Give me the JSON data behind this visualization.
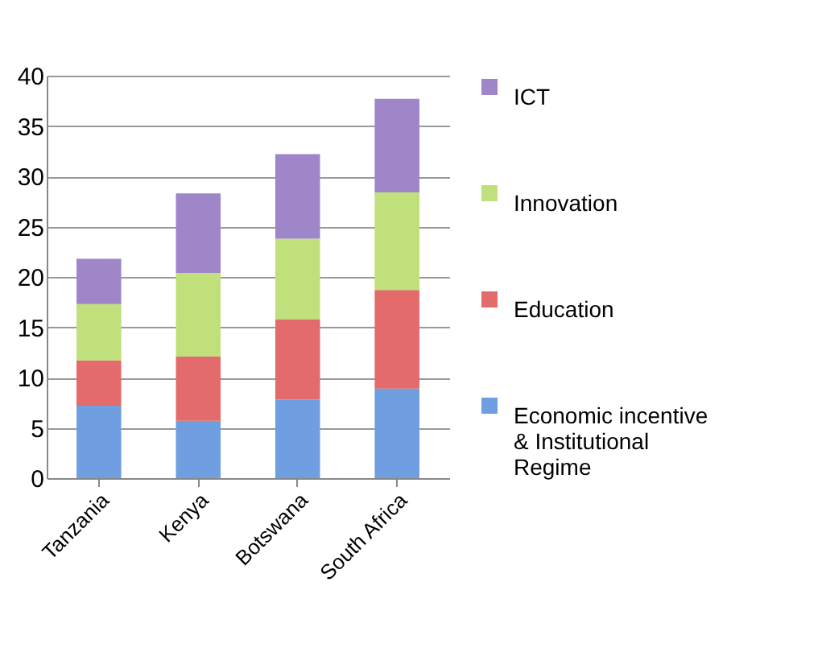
{
  "chart_data": {
    "type": "bar",
    "stacked": true,
    "categories": [
      "Tanzania",
      "Kenya",
      "Botswana",
      "South Africa"
    ],
    "series": [
      {
        "name": "Economic incentive & Institutional Regime",
        "color": "#6f9fe0",
        "values": [
          7.2,
          5.7,
          7.8,
          8.9
        ]
      },
      {
        "name": "Education",
        "color": "#e36b6b",
        "values": [
          4.5,
          6.4,
          8.0,
          9.8
        ]
      },
      {
        "name": "Innovation",
        "color": "#bfe07a",
        "values": [
          5.6,
          8.3,
          8.0,
          9.7
        ]
      },
      {
        "name": "ICT",
        "color": "#9e86c8",
        "values": [
          4.5,
          7.9,
          8.4,
          9.3
        ]
      }
    ],
    "ylim": [
      0,
      40
    ],
    "yticks": [
      0,
      5,
      10,
      15,
      20,
      25,
      30,
      35,
      40
    ],
    "grid": "y",
    "legend": "right"
  }
}
